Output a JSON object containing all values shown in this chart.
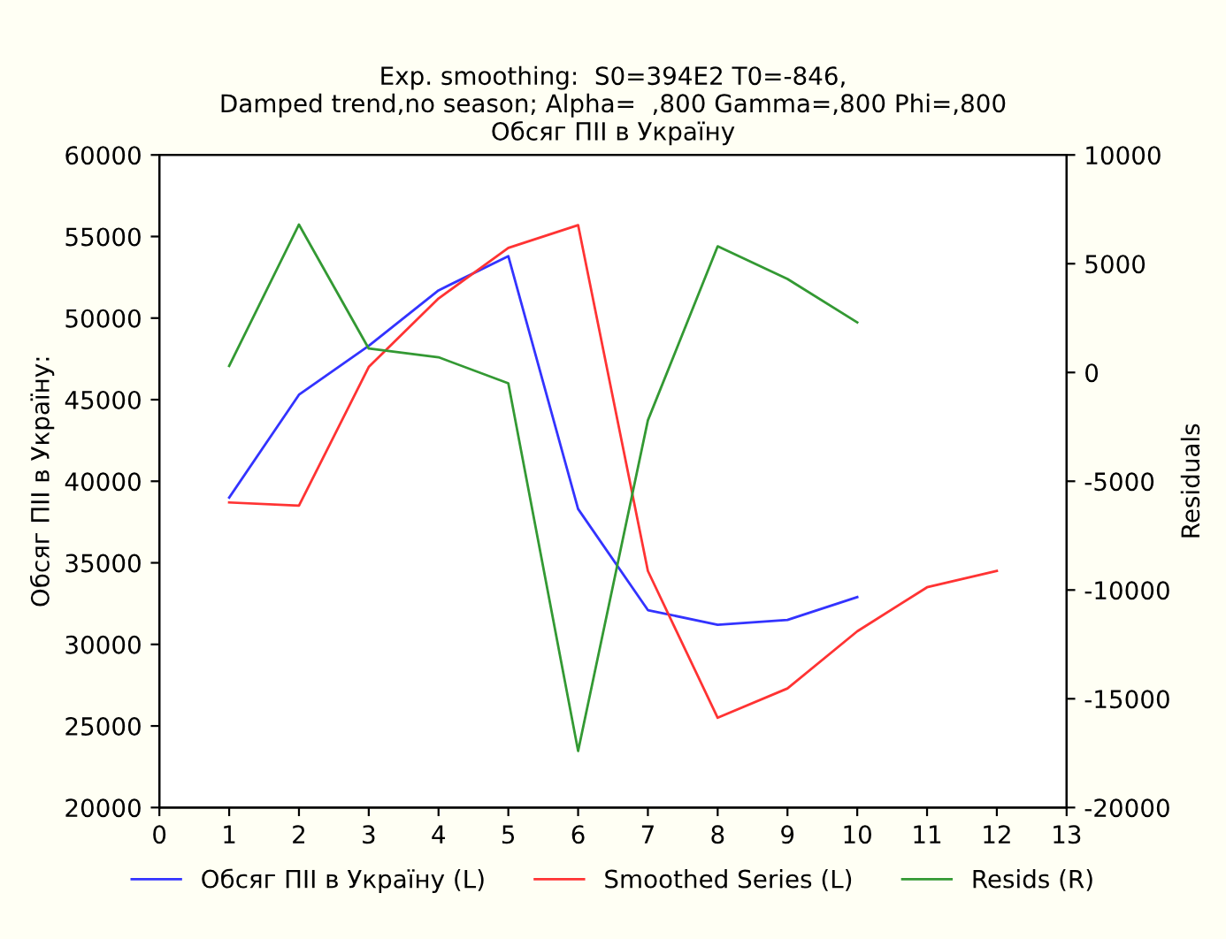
{
  "chart_data": {
    "type": "line",
    "title": "Exp. smoothing:  S0=394E2 T0=-846,\nDamped trend,no season; Alpha=  ,800 Gamma=,800 Phi=,800\nОбсяг ПІІ в Україну",
    "ylabel": "Обсяг ПІІ в Україну:",
    "y2label": "Residuals",
    "series": [
      {
        "name": "Обсяг ПІІ в Україну (L)",
        "color": "#3333ff",
        "x": [
          1,
          2,
          3,
          4,
          5,
          6,
          7,
          8,
          9,
          10
        ],
        "values": [
          39000,
          45300,
          48300,
          51700,
          53800,
          38300,
          32100,
          31200,
          31500,
          32900
        ]
      },
      {
        "name": "Smoothed Series (L)",
        "color": "#ff3333",
        "x": [
          1,
          2,
          3,
          4,
          5,
          6,
          7,
          8,
          9,
          10,
          11,
          12
        ],
        "values": [
          38700,
          38500,
          47000,
          51200,
          54300,
          55700,
          34500,
          25500,
          27300,
          30800,
          33500,
          34500
        ]
      },
      {
        "name": "Resids (R)",
        "color": "#339933",
        "axis": "y2",
        "x": [
          1,
          2,
          3,
          4,
          5,
          6,
          7,
          8,
          9,
          10
        ],
        "values": [
          300,
          6800,
          1100,
          700,
          -500,
          -17400,
          -2200,
          5800,
          4300,
          2300
        ]
      }
    ],
    "xlim": [
      0,
      13
    ],
    "xticks": [
      0,
      1,
      2,
      3,
      4,
      5,
      6,
      7,
      8,
      9,
      10,
      11,
      12,
      13
    ],
    "ylim": [
      20000,
      60000
    ],
    "yticks": [
      20000,
      25000,
      30000,
      35000,
      40000,
      45000,
      50000,
      55000,
      60000
    ],
    "y2lim": [
      -20000,
      10000
    ],
    "y2ticks": [
      -20000,
      -15000,
      -10000,
      -5000,
      0,
      5000,
      10000
    ],
    "legend": "bottom",
    "grid": false,
    "marker": "none",
    "line_style": "solid"
  }
}
